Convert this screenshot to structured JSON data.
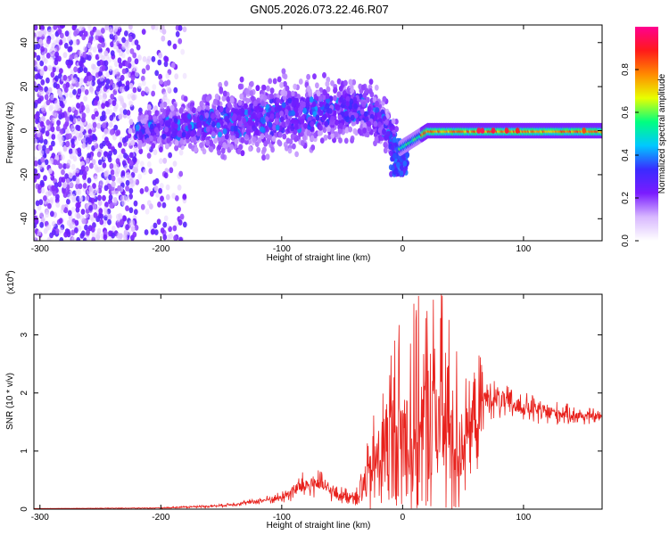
{
  "title": "GN05.2026.073.22.46.R07",
  "chart_data": [
    {
      "type": "heatmap",
      "xlabel": "Height of straight line (km)",
      "ylabel": "Frequency (Hz)",
      "xlim": [
        -305,
        165
      ],
      "ylim": [
        -50,
        48
      ],
      "xticks": [
        "-300",
        "-200",
        "-100",
        "0",
        "100"
      ],
      "yticks": [
        "-40",
        "-20",
        "0",
        "20",
        "40"
      ],
      "colorbar": {
        "label": "Normalized spectral amplitude",
        "range": [
          0.0,
          1.0
        ],
        "ticks": [
          "0.0",
          "0.2",
          "0.4",
          "0.6",
          "0.8"
        ],
        "stops": [
          "#ffffff",
          "#d8b8ff",
          "#7a1cff",
          "#3a2bff",
          "#00c8ff",
          "#00ff80",
          "#e8ff00",
          "#ff8a00",
          "#ff1a1a",
          "#ff0090"
        ]
      },
      "regions": [
        {
          "name": "scattered noise",
          "x_range": [
            -305,
            -220
          ],
          "freq_range": [
            -50,
            48
          ],
          "amplitude": 0.1
        },
        {
          "name": "band widening",
          "x_range": [
            -220,
            -5
          ],
          "freq_center": [
            0,
            12
          ],
          "freq_halfwidth": [
            10,
            22
          ],
          "amplitude": 0.3
        },
        {
          "name": "dip",
          "x": -5,
          "freq": -13,
          "amplitude": 0.4
        },
        {
          "name": "narrow line",
          "x_range": [
            5,
            165
          ],
          "freq": 0,
          "freq_halfwidth": 2.5,
          "amplitude": 0.75
        }
      ]
    },
    {
      "type": "line",
      "xlabel": "Height of straight line (km)",
      "ylabel": "SNR (10 * v/v)",
      "yunit_label": "(x10",
      "yunit_exp": "4",
      "xlim": [
        -305,
        165
      ],
      "ylim": [
        0,
        3.7
      ],
      "xticks": [
        "-300",
        "-200",
        "-100",
        "0",
        "100"
      ],
      "yticks": [
        "0",
        "1",
        "2",
        "3"
      ],
      "color": "#e8211c",
      "series": [
        {
          "x": [
            -305,
            -200,
            -150,
            -125,
            -100,
            -85,
            -70,
            -55,
            -40,
            -30,
            -20,
            -10,
            0,
            10,
            20,
            30,
            40,
            48,
            55,
            65,
            67,
            75,
            90,
            110,
            130,
            150,
            165
          ],
          "value": [
            0.01,
            0.02,
            0.06,
            0.12,
            0.2,
            0.38,
            0.45,
            0.25,
            0.22,
            0.45,
            0.9,
            1.2,
            1.25,
            1.35,
            1.5,
            1.6,
            1.3,
            1.1,
            1.4,
            1.7,
            1.9,
            1.9,
            1.8,
            1.7,
            1.65,
            1.6,
            1.6
          ],
          "spread": [
            0.0,
            0.01,
            0.03,
            0.05,
            0.1,
            0.25,
            0.25,
            0.15,
            0.15,
            0.6,
            1.2,
            1.8,
            2.2,
            2.3,
            2.3,
            2.4,
            2.0,
            1.5,
            0.8,
            1.1,
            0.4,
            0.35,
            0.3,
            0.25,
            0.2,
            0.15,
            0.12
          ]
        }
      ]
    }
  ]
}
